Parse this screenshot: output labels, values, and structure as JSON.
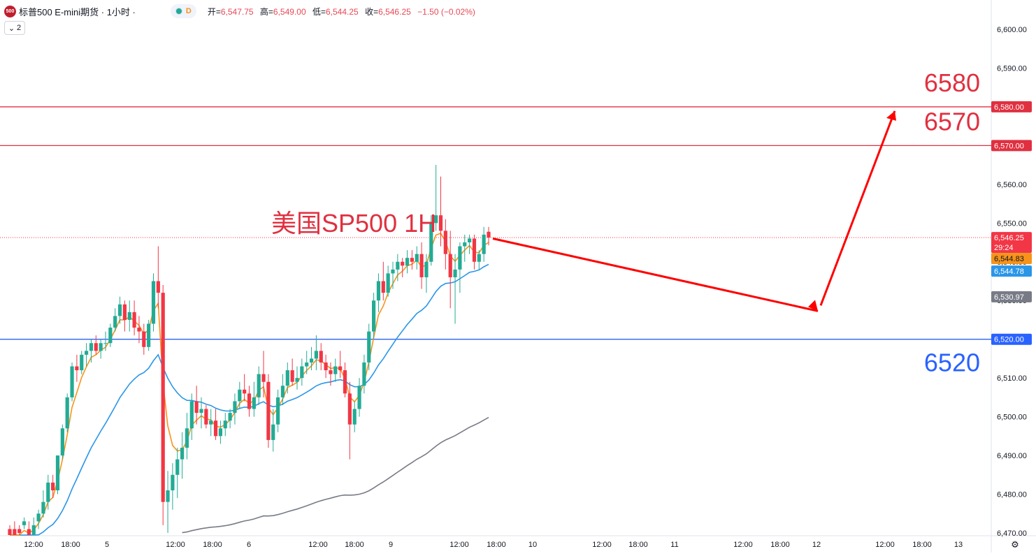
{
  "header": {
    "logo_text": "500",
    "symbol_title": "标普500 E-mini期货 · 1小时 ·",
    "market_badge": "D",
    "ohlc": [
      {
        "label": "开=",
        "value": "6,547.75"
      },
      {
        "label": "高=",
        "value": "6,549.00"
      },
      {
        "label": "低=",
        "value": "6,544.25"
      },
      {
        "label": "收=",
        "value": "6,546.25"
      }
    ],
    "change": "−1.50 (−0.02%)",
    "indicator_count": "2"
  },
  "colors": {
    "up": "#22ab94",
    "down": "#f23645",
    "ema_fast": "#f7931a",
    "ema_mid": "#2a96e8",
    "ema_slow": "#787b86",
    "resistance": "#e03040",
    "support": "#2962ff",
    "arrow": "#ff0000"
  },
  "annotation_title": "美国SP500 1H",
  "levels": [
    {
      "label": "6580",
      "value": 6580,
      "tag": "6,580.00",
      "kind": "resistance"
    },
    {
      "label": "6570",
      "value": 6570,
      "tag": "6,570.00",
      "kind": "resistance"
    },
    {
      "label": "6520",
      "value": 6520,
      "tag": "6,520.00",
      "kind": "support"
    }
  ],
  "price_tags": {
    "last": {
      "value": 6546.25,
      "text": "6,546.25",
      "countdown": "29:24"
    },
    "ema_fast": {
      "value": 6544.83,
      "text": "6,544.83"
    },
    "ema_mid": {
      "value": 6544.78,
      "text": "6,544.78"
    },
    "ema_slow": {
      "value": 6530.97,
      "text": "6,530.97"
    }
  },
  "chart_data": {
    "type": "candlestick",
    "timeframe": "1H",
    "y_axis_range": [
      6470,
      6600
    ],
    "y_ticks": [
      "6,600.00",
      "6,590.00",
      "6,580.00",
      "6,570.00",
      "6,560.00",
      "6,550.00",
      "6,540.00",
      "6,530.00",
      "6,520.00",
      "6,510.00",
      "6,500.00",
      "6,490.00",
      "6,480.00",
      "6,470.00"
    ],
    "x_ticks": [
      "12:00",
      "18:00",
      "5",
      "12:00",
      "18:00",
      "6",
      "12:00",
      "18:00",
      "9",
      "12:00",
      "18:00",
      "10",
      "12:00",
      "18:00",
      "11",
      "12:00",
      "18:00",
      "12",
      "12:00",
      "18:00",
      "13"
    ],
    "projection": {
      "path_values": [
        6546,
        6528,
        6580
      ],
      "description": "下行至约6528后反弹上行至6580"
    },
    "candles": [
      [
        6471,
        6472,
        6468,
        6468
      ],
      [
        6471,
        6473,
        6468,
        6469
      ],
      [
        6471,
        6472,
        6469,
        6470
      ],
      [
        6472,
        6474,
        6471,
        6473
      ],
      [
        6471,
        6473,
        6468,
        6469
      ],
      [
        6469,
        6474,
        6468,
        6472
      ],
      [
        6473,
        6476,
        6471,
        6475
      ],
      [
        6475,
        6481,
        6474,
        6478
      ],
      [
        6478,
        6485,
        6476,
        6483
      ],
      [
        6483,
        6485,
        6479,
        6481
      ],
      [
        6481,
        6490,
        6480,
        6490
      ],
      [
        6490,
        6498,
        6489,
        6497
      ],
      [
        6497,
        6506,
        6496,
        6505
      ],
      [
        6505,
        6514,
        6504,
        6513
      ],
      [
        6513,
        6516,
        6509,
        6512
      ],
      [
        6512,
        6517,
        6511,
        6516
      ],
      [
        6516,
        6519,
        6513,
        6517
      ],
      [
        6517,
        6520,
        6514,
        6519
      ],
      [
        6519,
        6521,
        6516,
        6517
      ],
      [
        6517,
        6520,
        6515,
        6519
      ],
      [
        6519,
        6522,
        6517,
        6519
      ],
      [
        6519,
        6524,
        6518,
        6523
      ],
      [
        6523,
        6528,
        6522,
        6526
      ],
      [
        6526,
        6531,
        6524,
        6529
      ],
      [
        6529,
        6530,
        6522,
        6525
      ],
      [
        6525,
        6530,
        6522,
        6527
      ],
      [
        6527,
        6530,
        6521,
        6523
      ],
      [
        6523,
        6526,
        6519,
        6522
      ],
      [
        6522,
        6524,
        6516,
        6518
      ],
      [
        6518,
        6525,
        6517,
        6524
      ],
      [
        6524,
        6537,
        6522,
        6535
      ],
      [
        6535,
        6544,
        6528,
        6532
      ],
      [
        6532,
        6534,
        6472,
        6478
      ],
      [
        6478,
        6486,
        6470,
        6481
      ],
      [
        6481,
        6488,
        6476,
        6485
      ],
      [
        6485,
        6492,
        6479,
        6489
      ],
      [
        6489,
        6496,
        6484,
        6492
      ],
      [
        6492,
        6501,
        6489,
        6497
      ],
      [
        6497,
        6506,
        6494,
        6504
      ],
      [
        6504,
        6508,
        6498,
        6501
      ],
      [
        6501,
        6505,
        6497,
        6502
      ],
      [
        6502,
        6503,
        6497,
        6498
      ],
      [
        6498,
        6502,
        6495,
        6499
      ],
      [
        6499,
        6502,
        6494,
        6495
      ],
      [
        6495,
        6499,
        6493,
        6497
      ],
      [
        6497,
        6501,
        6495,
        6499
      ],
      [
        6499,
        6502,
        6497,
        6501
      ],
      [
        6501,
        6506,
        6498,
        6504
      ],
      [
        6504,
        6509,
        6502,
        6507
      ],
      [
        6507,
        6511,
        6504,
        6506
      ],
      [
        6506,
        6508,
        6500,
        6502
      ],
      [
        6502,
        6509,
        6500,
        6505
      ],
      [
        6505,
        6513,
        6503,
        6511
      ],
      [
        6511,
        6517,
        6505,
        6509
      ],
      [
        6509,
        6511,
        6492,
        6494
      ],
      [
        6494,
        6502,
        6491,
        6498
      ],
      [
        6498,
        6507,
        6496,
        6505
      ],
      [
        6505,
        6511,
        6503,
        6508
      ],
      [
        6508,
        6514,
        6506,
        6512
      ],
      [
        6512,
        6515,
        6508,
        6509
      ],
      [
        6509,
        6513,
        6507,
        6510
      ],
      [
        6510,
        6515,
        6508,
        6513
      ],
      [
        6513,
        6517,
        6511,
        6514
      ],
      [
        6514,
        6518,
        6512,
        6515
      ],
      [
        6515,
        6521,
        6512,
        6517
      ],
      [
        6517,
        6519,
        6512,
        6514
      ],
      [
        6514,
        6516,
        6510,
        6512
      ],
      [
        6512,
        6514,
        6508,
        6511
      ],
      [
        6511,
        6515,
        6509,
        6513
      ],
      [
        6513,
        6517,
        6510,
        6512
      ],
      [
        6512,
        6514,
        6505,
        6506
      ],
      [
        6506,
        6509,
        6489,
        6498
      ],
      [
        6498,
        6504,
        6496,
        6502
      ],
      [
        6502,
        6510,
        6500,
        6508
      ],
      [
        6508,
        6516,
        6506,
        6514
      ],
      [
        6514,
        6524,
        6512,
        6522
      ],
      [
        6522,
        6532,
        6520,
        6530
      ],
      [
        6530,
        6537,
        6527,
        6535
      ],
      [
        6535,
        6540,
        6530,
        6532
      ],
      [
        6532,
        6539,
        6531,
        6537
      ],
      [
        6537,
        6540,
        6533,
        6538
      ],
      [
        6538,
        6542,
        6535,
        6540
      ],
      [
        6540,
        6541,
        6536,
        6539
      ],
      [
        6539,
        6543,
        6537,
        6541
      ],
      [
        6541,
        6543,
        6538,
        6540
      ],
      [
        6540,
        6544,
        6538,
        6542
      ],
      [
        6542,
        6545,
        6533,
        6536
      ],
      [
        6536,
        6542,
        6532,
        6540
      ],
      [
        6540,
        6552,
        6539,
        6550
      ],
      [
        6550,
        6565,
        6548,
        6552
      ],
      [
        6552,
        6562,
        6544,
        6548
      ],
      [
        6548,
        6551,
        6538,
        6542
      ],
      [
        6542,
        6548,
        6528,
        6536
      ],
      [
        6536,
        6542,
        6524,
        6538
      ],
      [
        6538,
        6545,
        6532,
        6544
      ],
      [
        6544,
        6547,
        6540,
        6545
      ],
      [
        6545,
        6547,
        6542,
        6546
      ],
      [
        6546,
        6547,
        6538,
        6540
      ],
      [
        6540,
        6543,
        6538,
        6542
      ],
      [
        6542,
        6549,
        6540,
        6547
      ],
      [
        6547.75,
        6549,
        6544.25,
        6546.25
      ]
    ]
  }
}
